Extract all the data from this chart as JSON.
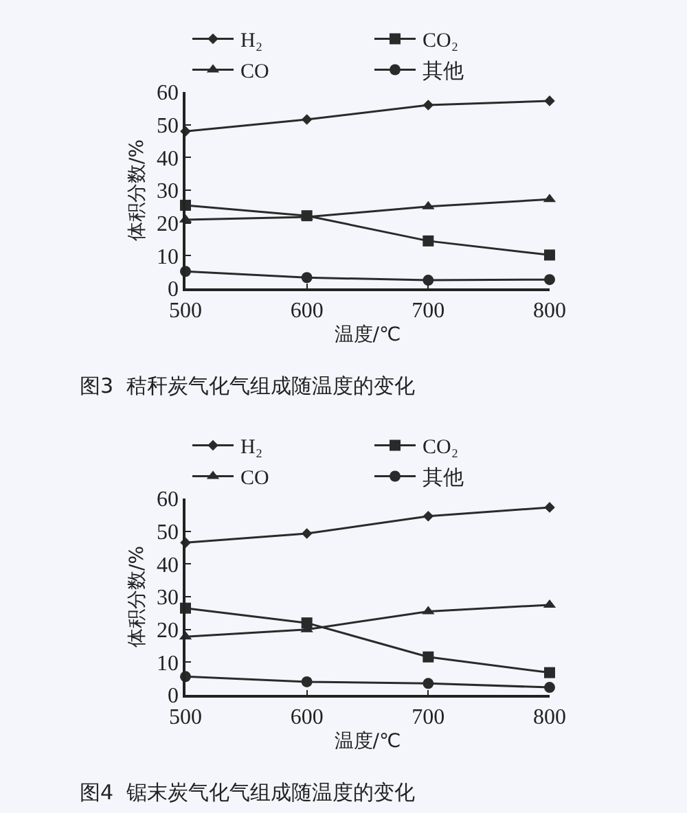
{
  "chart_data": [
    {
      "type": "line",
      "title": "图3  秸秆炭气化气组成随温度的变化",
      "xlabel": "温度/℃",
      "ylabel": "体积分数/%",
      "x": [
        500,
        600,
        700,
        800
      ],
      "xlim": [
        500,
        800
      ],
      "xticks": [
        500,
        600,
        700,
        800
      ],
      "ylim": [
        0,
        60
      ],
      "yticks": [
        0,
        10,
        20,
        30,
        40,
        50,
        60
      ],
      "grid": false,
      "legend": "top left",
      "line_style": "solid",
      "series": [
        {
          "name": "H₂",
          "color": "#2a2a2a",
          "marker": "diamond",
          "values": [
            48,
            51.6,
            56,
            57.3
          ]
        },
        {
          "name": "CO₂",
          "color": "#2a2a2a",
          "marker": "square",
          "values": [
            25.4,
            22.2,
            14.5,
            10.2
          ]
        },
        {
          "name": "CO",
          "color": "#2a2a2a",
          "marker": "triangle",
          "values": [
            21,
            21.8,
            25,
            27.2
          ]
        },
        {
          "name": "其他",
          "color": "#2a2a2a",
          "marker": "circle",
          "values": [
            5.2,
            3.3,
            2.5,
            2.7
          ]
        }
      ]
    },
    {
      "type": "line",
      "title": "图4  锯末炭气化气组成随温度的变化",
      "xlabel": "温度/℃",
      "ylabel": "体积分数/%",
      "x": [
        500,
        600,
        700,
        800
      ],
      "xlim": [
        500,
        800
      ],
      "xticks": [
        500,
        600,
        700,
        800
      ],
      "ylim": [
        0,
        60
      ],
      "yticks": [
        0,
        10,
        20,
        30,
        40,
        50,
        60
      ],
      "grid": false,
      "legend": "top left",
      "line_style": "solid",
      "series": [
        {
          "name": "H₂",
          "color": "#2a2a2a",
          "marker": "diamond",
          "values": [
            46.5,
            49.3,
            54.6,
            57.3
          ]
        },
        {
          "name": "CO₂",
          "color": "#2a2a2a",
          "marker": "square",
          "values": [
            26.5,
            22,
            11.6,
            6.8
          ]
        },
        {
          "name": "CO",
          "color": "#2a2a2a",
          "marker": "triangle",
          "values": [
            17.8,
            20,
            25.5,
            27.5
          ]
        },
        {
          "name": "其他",
          "color": "#2a2a2a",
          "marker": "circle",
          "values": [
            5.6,
            4,
            3.5,
            2.3
          ]
        }
      ]
    }
  ]
}
